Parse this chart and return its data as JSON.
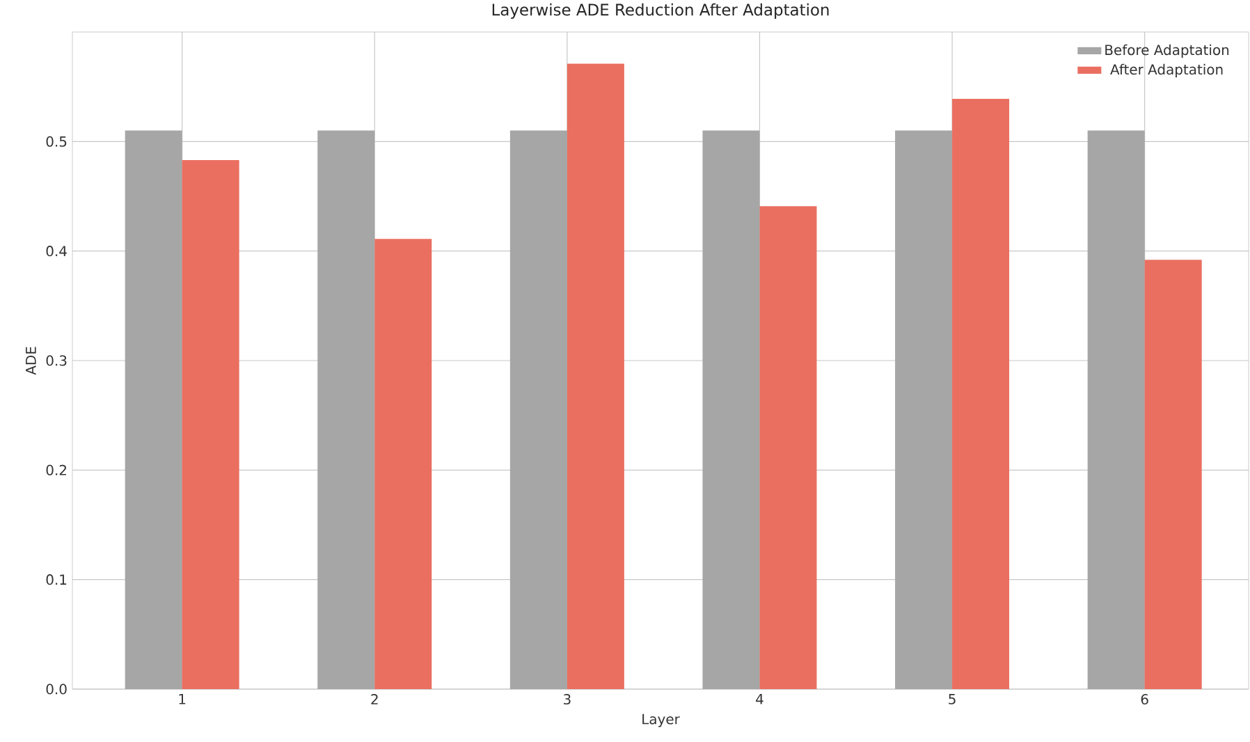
{
  "chart_data": {
    "type": "bar",
    "title": "Layerwise ADE Reduction After Adaptation",
    "xlabel": "Layer",
    "ylabel": "ADE",
    "categories": [
      "1",
      "2",
      "3",
      "4",
      "5",
      "6"
    ],
    "series": [
      {
        "name": "Before Adaptation",
        "color": "#a6a6a6",
        "values": [
          0.51,
          0.51,
          0.51,
          0.51,
          0.51,
          0.51
        ]
      },
      {
        "name": "After Adaptation",
        "color": "#ea6f60",
        "values": [
          0.483,
          0.411,
          0.571,
          0.441,
          0.539,
          0.392
        ]
      }
    ],
    "ylim": [
      0,
      0.6
    ],
    "yticks": [
      {
        "value": 0,
        "label": "0.0"
      },
      0.1,
      0.2,
      0.3,
      0.4,
      0.5
    ],
    "grid": true,
    "legend": "top right"
  }
}
